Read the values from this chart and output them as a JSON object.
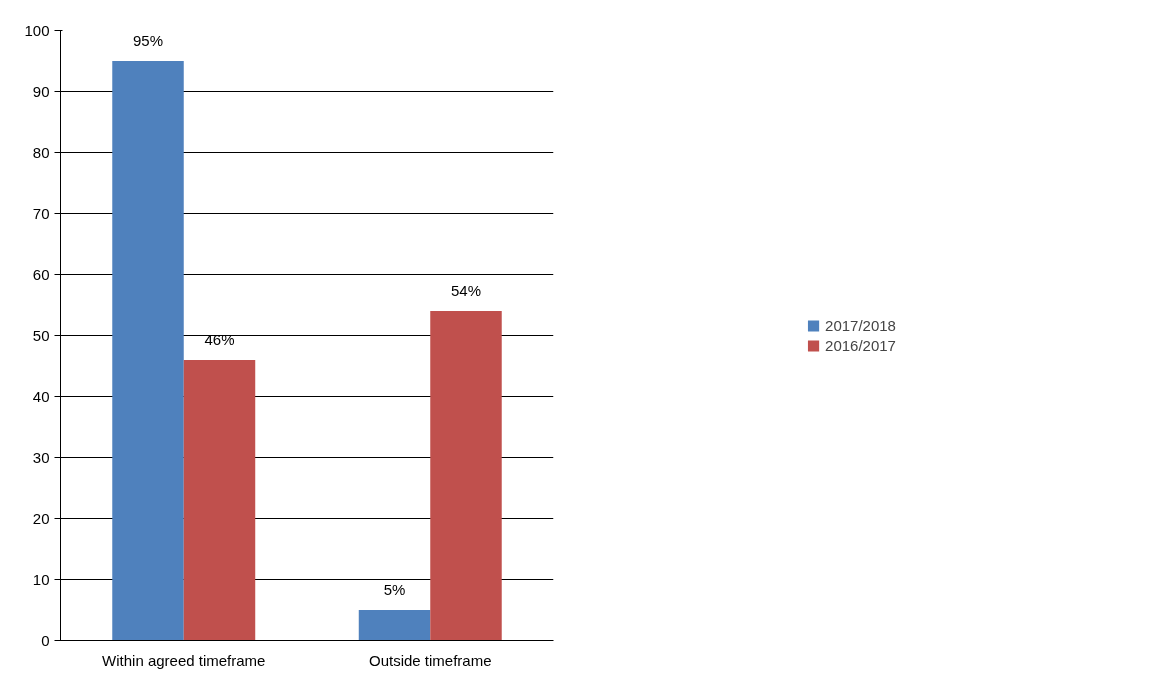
{
  "chart_data": {
    "type": "bar",
    "categories": [
      "Within agreed timeframe",
      "Outside timeframe"
    ],
    "series": [
      {
        "name": "2017/2018",
        "color": "#4f81bd",
        "values": [
          95,
          5
        ],
        "value_labels": [
          "95%",
          "5%"
        ]
      },
      {
        "name": "2016/2017",
        "color": "#c0504d",
        "values": [
          46,
          54
        ],
        "value_labels": [
          "46%",
          "54%"
        ]
      }
    ],
    "ylim": [
      0,
      100
    ],
    "yticks": [
      0,
      10,
      20,
      30,
      40,
      50,
      60,
      70,
      80,
      90,
      100
    ],
    "grid": "y",
    "legend": "right"
  }
}
